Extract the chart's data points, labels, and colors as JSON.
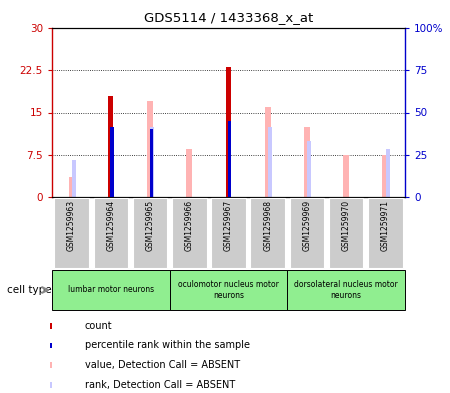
{
  "title": "GDS5114 / 1433368_x_at",
  "samples": [
    "GSM1259963",
    "GSM1259964",
    "GSM1259965",
    "GSM1259966",
    "GSM1259967",
    "GSM1259968",
    "GSM1259969",
    "GSM1259970",
    "GSM1259971"
  ],
  "count_values": [
    0,
    18.0,
    0,
    0,
    23.0,
    0,
    0,
    0,
    0
  ],
  "rank_values": [
    0,
    12.5,
    12.0,
    0,
    13.5,
    0,
    0,
    0,
    0
  ],
  "absent_value_bars": [
    3.5,
    0,
    17.0,
    8.5,
    0,
    16.0,
    12.5,
    7.5,
    7.5
  ],
  "absent_rank_bars": [
    6.5,
    0,
    12.5,
    0,
    0,
    12.5,
    10.0,
    0,
    8.5
  ],
  "ylim_left": [
    0,
    30
  ],
  "ylim_right": [
    0,
    100
  ],
  "yticks_left": [
    0,
    7.5,
    15,
    22.5,
    30
  ],
  "yticks_right": [
    0,
    25,
    50,
    75,
    100
  ],
  "ytick_labels_left": [
    "0",
    "7.5",
    "15",
    "22.5",
    "30"
  ],
  "ytick_labels_right": [
    "0",
    "25",
    "50",
    "75",
    "100%"
  ],
  "left_axis_color": "#cc0000",
  "right_axis_color": "#0000cc",
  "count_color": "#cc0000",
  "rank_color": "#0000cc",
  "absent_value_color": "#ffb3b3",
  "absent_rank_color": "#c8c8ff",
  "cell_groups": [
    {
      "label": "lumbar motor neurons",
      "start": 0,
      "end": 2,
      "color": "#90ee90"
    },
    {
      "label": "oculomotor nucleus motor\nneurons",
      "start": 3,
      "end": 5,
      "color": "#90ee90"
    },
    {
      "label": "dorsolateral nucleus motor\nneurons",
      "start": 6,
      "end": 8,
      "color": "#90ee90"
    }
  ],
  "cell_type_label": "cell type",
  "legend_items": [
    {
      "label": "count",
      "color": "#cc0000"
    },
    {
      "label": "percentile rank within the sample",
      "color": "#0000cc"
    },
    {
      "label": "value, Detection Call = ABSENT",
      "color": "#ffb3b3"
    },
    {
      "label": "rank, Detection Call = ABSENT",
      "color": "#c8c8ff"
    }
  ],
  "bg_color": "#ffffff",
  "plot_bg_color": "#ffffff",
  "sample_box_color": "#cccccc",
  "grid_color": "black"
}
